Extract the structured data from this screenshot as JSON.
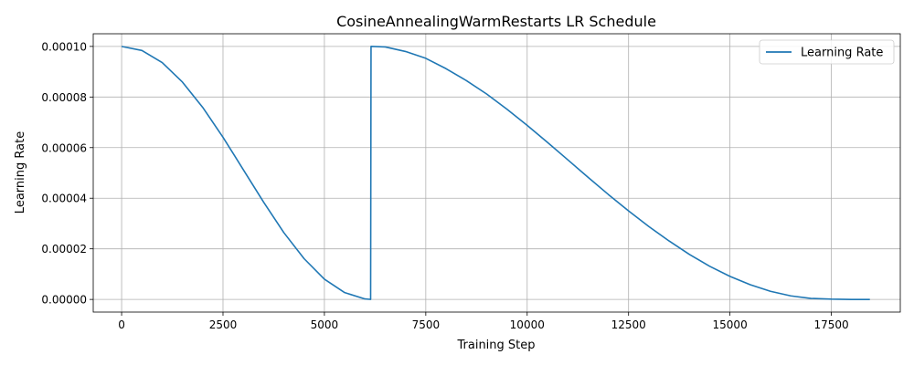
{
  "chart_data": {
    "type": "line",
    "title": "CosineAnnealingWarmRestarts LR Schedule",
    "xlabel": "Training Step",
    "ylabel": "Learning Rate",
    "xlim": [
      -700,
      19200
    ],
    "ylim": [
      -5e-06,
      0.000105
    ],
    "xticks": [
      0,
      2500,
      5000,
      7500,
      10000,
      12500,
      15000,
      17500
    ],
    "xtick_labels": [
      "0",
      "2500",
      "5000",
      "7500",
      "10000",
      "12500",
      "15000",
      "17500"
    ],
    "yticks": [
      0,
      2e-05,
      4e-05,
      6e-05,
      8e-05,
      0.0001
    ],
    "ytick_labels": [
      "0.00000",
      "0.00002",
      "0.00004",
      "0.00006",
      "0.00008",
      "0.00010"
    ],
    "grid": true,
    "legend_position": "top-right",
    "series": [
      {
        "name": "Learning Rate",
        "color": "#1f77b4",
        "x": [
          0,
          500,
          1000,
          1500,
          2000,
          2500,
          3000,
          3500,
          4000,
          4500,
          5000,
          5500,
          6000,
          6140,
          6150,
          6500,
          7000,
          7500,
          8000,
          8500,
          9000,
          9500,
          10000,
          10500,
          11000,
          11500,
          12000,
          12500,
          13000,
          13500,
          14000,
          14500,
          15000,
          15500,
          16000,
          16500,
          17000,
          17500,
          18000,
          18450
        ],
        "y": [
          0.0001,
          9.84e-05,
          9.36e-05,
          8.59e-05,
          7.59e-05,
          6.41e-05,
          5.13e-05,
          3.85e-05,
          2.64e-05,
          1.61e-05,
          8e-06,
          2.7e-06,
          2e-07,
          0.0,
          0.0001,
          9.98e-05,
          9.8e-05,
          9.53e-05,
          9.12e-05,
          8.65e-05,
          8.12e-05,
          7.52e-05,
          6.88e-05,
          6.21e-05,
          5.52e-05,
          4.83e-05,
          4.15e-05,
          3.5e-05,
          2.88e-05,
          2.31e-05,
          1.78e-05,
          1.31e-05,
          9.1e-06,
          5.8e-06,
          3.2e-06,
          1.4e-06,
          4e-07,
          1e-07,
          0.0,
          0.0
        ]
      }
    ]
  }
}
